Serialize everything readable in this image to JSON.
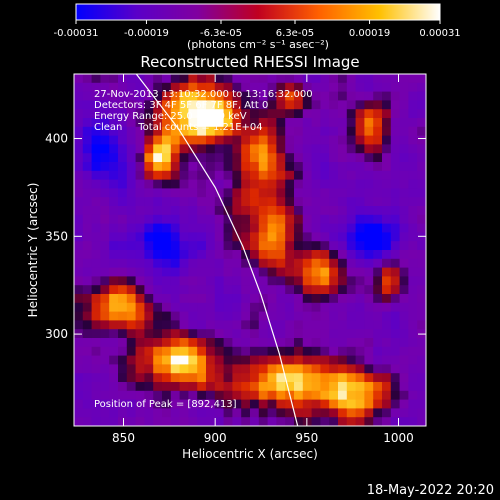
{
  "chart_data": {
    "type": "heatmap",
    "title": "Reconstructed RHESSI Image",
    "xlabel": "Heliocentric X (arcsec)",
    "ylabel": "Heliocentric Y (arcsec)",
    "xlim": [
      823,
      1015
    ],
    "ylim": [
      253,
      433
    ],
    "x_ticks": [
      850,
      900,
      950,
      1000
    ],
    "y_ticks": [
      300,
      350,
      400
    ],
    "colorbar": {
      "ticks": [
        "-0.00031",
        "-0.00019",
        "-6.3e-05",
        "6.3e-05",
        "0.00019",
        "0.00031"
      ],
      "tick_values": [
        -0.00031,
        -0.00019,
        -6.3e-05,
        6.3e-05,
        0.00019,
        0.00031
      ],
      "range": [
        -0.00031,
        0.00031
      ],
      "units_label": "(photons cm⁻² s⁻¹ asec⁻²)",
      "colors": [
        "#0000ff",
        "#5a00c8",
        "#8000a0",
        "#c00020",
        "#ff6000",
        "#ffc000",
        "#ffffff"
      ]
    },
    "annotations": [
      "27-Nov-2013 13:10:32.000 to 13:16:32.000",
      "Detectors: 3F 4F 5F 6F 7F 8F, Att 0",
      "Energy Range: 25.0 - 50.0 keV",
      "Clean     Total counts = 1.21E+04",
      "Position of Peak = [892,413]"
    ],
    "peak": [
      892,
      413
    ],
    "limb_curve": [
      [
        857,
        433
      ],
      [
        880,
        405
      ],
      [
        900,
        375
      ],
      [
        915,
        345
      ],
      [
        925,
        320
      ],
      [
        935,
        290
      ],
      [
        945,
        253
      ]
    ],
    "bright_regions": [
      {
        "x": 892,
        "y": 413,
        "sx": 14,
        "sy": 12,
        "amp": 1.0
      },
      {
        "x": 870,
        "y": 390,
        "sx": 8,
        "sy": 8,
        "amp": 0.7
      },
      {
        "x": 925,
        "y": 385,
        "sx": 10,
        "sy": 16,
        "amp": 0.6
      },
      {
        "x": 930,
        "y": 350,
        "sx": 12,
        "sy": 14,
        "amp": 0.55
      },
      {
        "x": 958,
        "y": 330,
        "sx": 10,
        "sy": 10,
        "amp": 0.5
      },
      {
        "x": 850,
        "y": 315,
        "sx": 14,
        "sy": 10,
        "amp": 0.65
      },
      {
        "x": 880,
        "y": 285,
        "sx": 16,
        "sy": 10,
        "amp": 0.8
      },
      {
        "x": 935,
        "y": 275,
        "sx": 18,
        "sy": 10,
        "amp": 0.75
      },
      {
        "x": 975,
        "y": 270,
        "sx": 14,
        "sy": 10,
        "amp": 0.7
      },
      {
        "x": 995,
        "y": 330,
        "sx": 6,
        "sy": 8,
        "amp": 0.5
      },
      {
        "x": 985,
        "y": 405,
        "sx": 8,
        "sy": 10,
        "amp": 0.55
      },
      {
        "x": 940,
        "y": 420,
        "sx": 8,
        "sy": 6,
        "amp": 0.5
      }
    ],
    "dark_regions": [
      {
        "x": 870,
        "y": 345,
        "sx": 14,
        "sy": 12
      },
      {
        "x": 985,
        "y": 350,
        "sx": 12,
        "sy": 10
      },
      {
        "x": 840,
        "y": 395,
        "sx": 10,
        "sy": 10
      }
    ]
  },
  "footer": {
    "date": "18-May-2022 20:20"
  }
}
